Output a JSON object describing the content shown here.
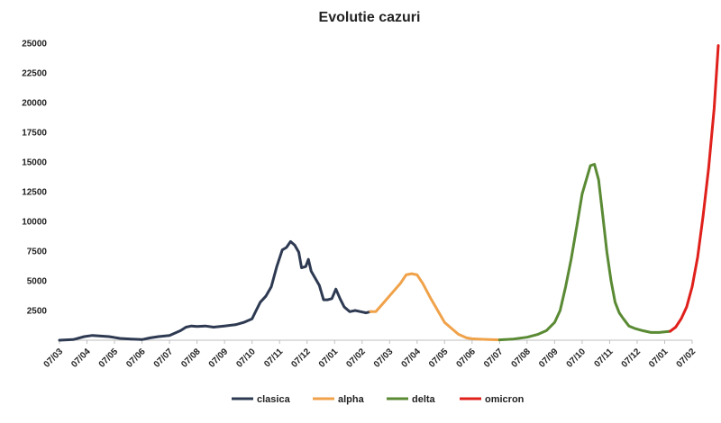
{
  "chart_data": {
    "type": "line",
    "title": "Evolutie cazuri",
    "xlabel": "",
    "ylabel": "",
    "ylim": [
      0,
      25000
    ],
    "yticks": [
      2500,
      5000,
      7500,
      10000,
      12500,
      15000,
      17500,
      20000,
      22500,
      25000
    ],
    "x_tick_labels": [
      "07/03",
      "07/04",
      "07/05",
      "07/06",
      "07/07",
      "07/08",
      "07/09",
      "07/10",
      "07/11",
      "07/12",
      "07/01",
      "07/02",
      "07/03",
      "07/04",
      "07/05",
      "07/06",
      "07/07",
      "07/08",
      "07/09",
      "07/10",
      "07/11",
      "07/12",
      "07/01",
      "07/02"
    ],
    "grid": false,
    "legend_position": "bottom",
    "x_unit": "months since first tick (07/03)",
    "series": [
      {
        "name": "clasica",
        "color": "#2e3a52",
        "x": [
          0,
          0.5,
          0.9,
          1.2,
          1.5,
          1.8,
          2.2,
          2.6,
          3.0,
          3.3,
          3.6,
          4.0,
          4.4,
          4.6,
          4.8,
          5.0,
          5.3,
          5.6,
          6.0,
          6.4,
          6.7,
          7.0,
          7.15,
          7.3,
          7.5,
          7.7,
          7.9,
          8.1,
          8.25,
          8.4,
          8.55,
          8.7,
          8.8,
          8.95,
          9.05,
          9.15,
          9.3,
          9.45,
          9.6,
          9.75,
          9.9,
          10.05,
          10.2,
          10.35,
          10.55,
          10.75,
          10.95,
          11.15,
          11.3
        ],
        "y": [
          0,
          50,
          300,
          400,
          350,
          300,
          150,
          100,
          50,
          200,
          300,
          400,
          800,
          1100,
          1200,
          1150,
          1200,
          1100,
          1200,
          1300,
          1500,
          1800,
          2500,
          3200,
          3700,
          4500,
          6200,
          7600,
          7800,
          8300,
          8000,
          7400,
          6100,
          6200,
          6800,
          5800,
          5200,
          4600,
          3400,
          3400,
          3500,
          4300,
          3500,
          2800,
          2400,
          2500,
          2400,
          2300,
          2400
        ]
      },
      {
        "name": "alpha",
        "color": "#f0a24a",
        "x": [
          11.3,
          11.5,
          11.8,
          12.1,
          12.4,
          12.6,
          12.8,
          13.0,
          13.2,
          13.5,
          13.8,
          14.0,
          14.2,
          14.5,
          14.8,
          15.0,
          15.3,
          15.6,
          16.0
        ],
        "y": [
          2400,
          2400,
          3200,
          4000,
          4800,
          5500,
          5600,
          5500,
          4800,
          3500,
          2300,
          1500,
          1100,
          500,
          200,
          120,
          80,
          50,
          30
        ]
      },
      {
        "name": "delta",
        "color": "#5a8a34",
        "x": [
          16.0,
          16.5,
          17.0,
          17.4,
          17.7,
          18.0,
          18.2,
          18.4,
          18.6,
          18.8,
          19.0,
          19.15,
          19.3,
          19.45,
          19.6,
          19.75,
          19.9,
          20.05,
          20.2,
          20.35,
          20.5,
          20.7,
          20.9,
          21.2,
          21.5,
          21.8,
          22.0,
          22.2
        ],
        "y": [
          30,
          100,
          250,
          500,
          800,
          1500,
          2500,
          4500,
          6800,
          9500,
          12300,
          13500,
          14700,
          14800,
          13500,
          10500,
          7400,
          5000,
          3200,
          2300,
          1800,
          1200,
          1000,
          800,
          650,
          650,
          700,
          750
        ]
      },
      {
        "name": "omicron",
        "color": "#e0201b",
        "x": [
          22.2,
          22.4,
          22.6,
          22.8,
          23.0,
          23.2,
          23.4,
          23.6,
          23.8,
          23.95
        ],
        "y": [
          750,
          1100,
          1800,
          2800,
          4500,
          7000,
          10500,
          14500,
          19500,
          24800
        ]
      }
    ]
  }
}
